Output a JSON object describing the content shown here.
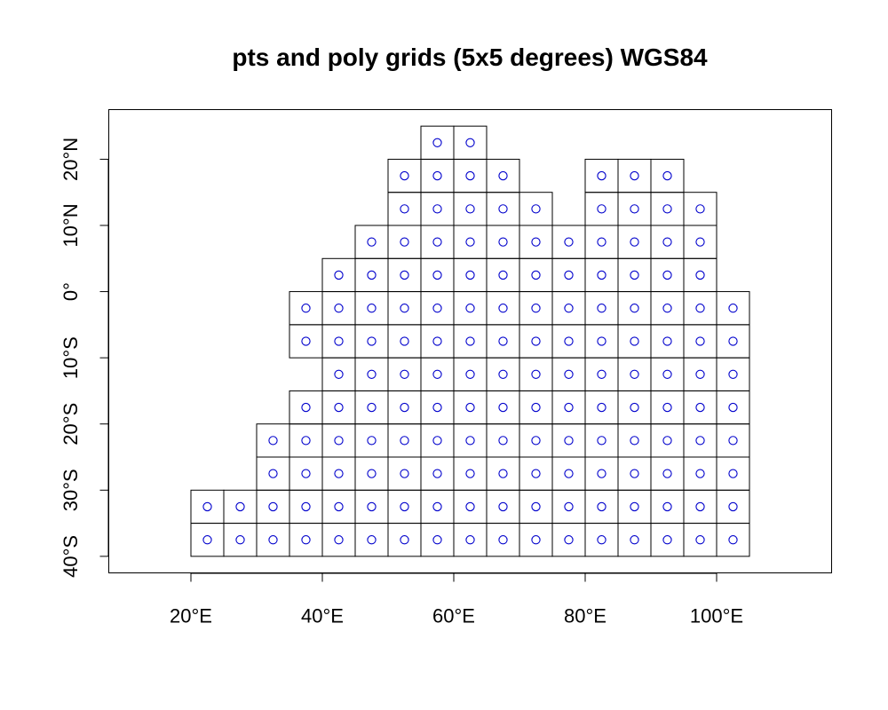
{
  "chart_data": {
    "type": "scatter",
    "title": "pts and poly grids (5x5 degrees) WGS84",
    "xlabel": "",
    "ylabel": "",
    "xlim": [
      7.5,
      117.5
    ],
    "ylim": [
      -42.5,
      27.5
    ],
    "grid": false,
    "legend": "none",
    "cell_size_degrees": 5,
    "x_ticks": [
      {
        "value": 20,
        "label": "20°E"
      },
      {
        "value": 40,
        "label": "40°E"
      },
      {
        "value": 60,
        "label": "60°E"
      },
      {
        "value": 80,
        "label": "80°E"
      },
      {
        "value": 100,
        "label": "100°E"
      }
    ],
    "y_ticks": [
      {
        "value": -40,
        "label": "40°S"
      },
      {
        "value": -30,
        "label": "30°S"
      },
      {
        "value": -20,
        "label": "20°S"
      },
      {
        "value": -10,
        "label": "10°S"
      },
      {
        "value": 0,
        "label": "0°"
      },
      {
        "value": 10,
        "label": "10°N"
      },
      {
        "value": 20,
        "label": "20°N"
      }
    ],
    "rows": [
      {
        "y": 22.5,
        "x": [
          57.5,
          62.5
        ]
      },
      {
        "y": 17.5,
        "x": [
          52.5,
          57.5,
          62.5,
          67.5,
          82.5,
          87.5,
          92.5
        ]
      },
      {
        "y": 12.5,
        "x": [
          52.5,
          57.5,
          62.5,
          67.5,
          72.5,
          82.5,
          87.5,
          92.5,
          97.5
        ]
      },
      {
        "y": 7.5,
        "x": [
          47.5,
          52.5,
          57.5,
          62.5,
          67.5,
          72.5,
          77.5,
          82.5,
          87.5,
          92.5,
          97.5
        ]
      },
      {
        "y": 2.5,
        "x": [
          42.5,
          47.5,
          52.5,
          57.5,
          62.5,
          67.5,
          72.5,
          77.5,
          82.5,
          87.5,
          92.5,
          97.5
        ]
      },
      {
        "y": -2.5,
        "x": [
          37.5,
          42.5,
          47.5,
          52.5,
          57.5,
          62.5,
          67.5,
          72.5,
          77.5,
          82.5,
          87.5,
          92.5,
          97.5,
          102.5
        ]
      },
      {
        "y": -7.5,
        "x": [
          37.5,
          42.5,
          47.5,
          52.5,
          57.5,
          62.5,
          67.5,
          72.5,
          77.5,
          82.5,
          87.5,
          92.5,
          97.5,
          102.5
        ]
      },
      {
        "y": -12.5,
        "x": [
          42.5,
          47.5,
          52.5,
          57.5,
          62.5,
          67.5,
          72.5,
          77.5,
          82.5,
          87.5,
          92.5,
          97.5,
          102.5
        ]
      },
      {
        "y": -17.5,
        "x": [
          37.5,
          42.5,
          47.5,
          52.5,
          57.5,
          62.5,
          67.5,
          72.5,
          77.5,
          82.5,
          87.5,
          92.5,
          97.5,
          102.5
        ]
      },
      {
        "y": -22.5,
        "x": [
          32.5,
          37.5,
          42.5,
          47.5,
          52.5,
          57.5,
          62.5,
          67.5,
          72.5,
          77.5,
          82.5,
          87.5,
          92.5,
          97.5,
          102.5
        ]
      },
      {
        "y": -27.5,
        "x": [
          32.5,
          37.5,
          42.5,
          47.5,
          52.5,
          57.5,
          62.5,
          67.5,
          72.5,
          77.5,
          82.5,
          87.5,
          92.5,
          97.5,
          102.5
        ]
      },
      {
        "y": -32.5,
        "x": [
          22.5,
          27.5,
          32.5,
          37.5,
          42.5,
          47.5,
          52.5,
          57.5,
          62.5,
          67.5,
          72.5,
          77.5,
          82.5,
          87.5,
          92.5,
          97.5,
          102.5
        ]
      },
      {
        "y": -37.5,
        "x": [
          22.5,
          27.5,
          32.5,
          37.5,
          42.5,
          47.5,
          52.5,
          57.5,
          62.5,
          67.5,
          72.5,
          77.5,
          82.5,
          87.5,
          92.5,
          97.5,
          102.5
        ]
      }
    ],
    "colors": {
      "points": "#0000cc",
      "cells": "#000000",
      "frame": "#000000",
      "background": "#ffffff"
    }
  }
}
